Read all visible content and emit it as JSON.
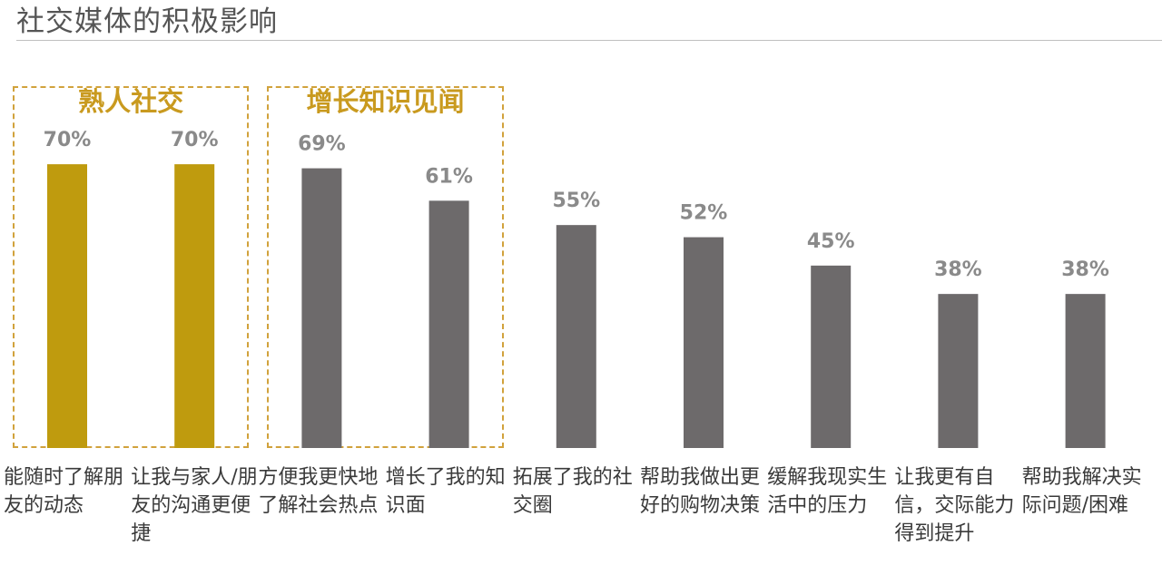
{
  "title": "社交媒体的积极影响",
  "chart_data": {
    "type": "bar",
    "categories": [
      "能随时了解朋友的动态",
      "让我与家人/朋友的沟通更便捷",
      "方便我更快地了解社会热点",
      "增长了我的知识面",
      "拓展了我的社交圈",
      "帮助我做出更好的购物决策",
      "缓解我现实生活中的压力",
      "让我更有自信，交际能力得到提升",
      "帮助我解决实际问题/困难"
    ],
    "values": [
      70,
      70,
      69,
      61,
      55,
      52,
      45,
      38,
      38
    ],
    "value_labels": [
      "70%",
      "70%",
      "69%",
      "61%",
      "55%",
      "52%",
      "45%",
      "38%",
      "38%"
    ],
    "bar_colors": [
      "#bf9b0e",
      "#bf9b0e",
      "#6d6a6b",
      "#6d6a6b",
      "#6d6a6b",
      "#6d6a6b",
      "#6d6a6b",
      "#6d6a6b",
      "#6d6a6b"
    ],
    "ylim": [
      0,
      100
    ],
    "groups": [
      {
        "label": "熟人社交",
        "start": 0,
        "end": 1,
        "color": "#c99a1f"
      },
      {
        "label": "增长知识见闻",
        "start": 2,
        "end": 3,
        "color": "#c99a1f"
      }
    ]
  },
  "colors": {
    "accent": "#bf9b0e",
    "bar": "#6d6a6b",
    "value_label": "#8a8a8a",
    "group_border": "#d1a23c"
  }
}
